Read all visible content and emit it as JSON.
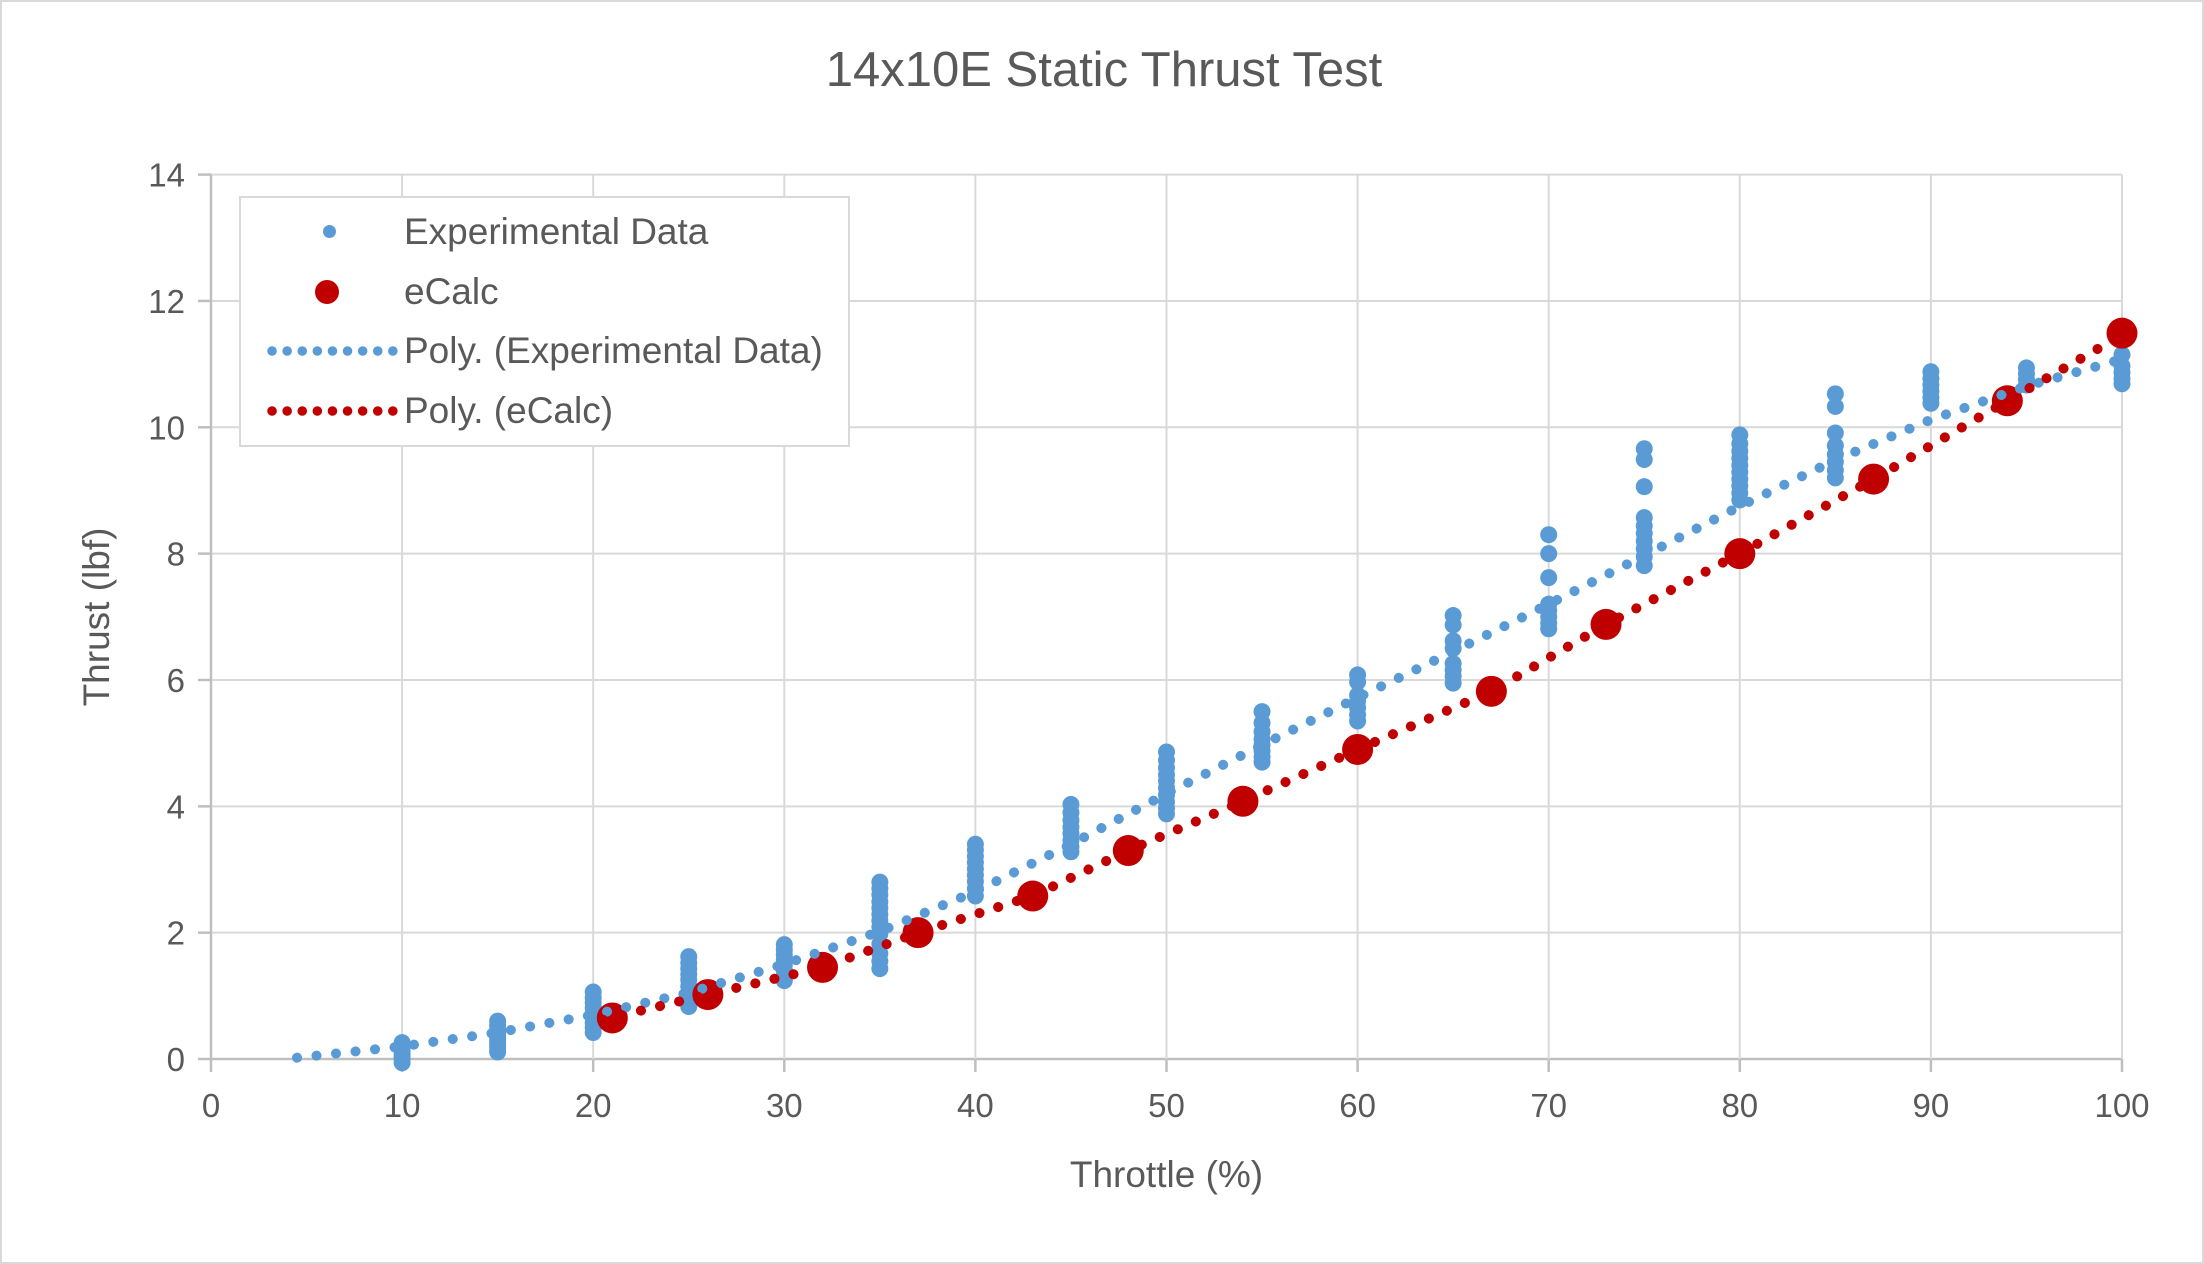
{
  "window": {
    "background": "#ffffff",
    "border_color": "#d9d9d9"
  },
  "chart_data": {
    "type": "scatter",
    "title": "14x10E Static Thrust Test",
    "xlabel": "Throttle (%)",
    "ylabel": "Thrust (lbf)",
    "xlim": [
      0,
      100
    ],
    "ylim": [
      0,
      14
    ],
    "xticks": [
      0,
      10,
      20,
      30,
      40,
      50,
      60,
      70,
      80,
      90,
      100
    ],
    "yticks": [
      0,
      2,
      4,
      6,
      8,
      10,
      12,
      14
    ],
    "grid": true,
    "legend_position": "top-left",
    "colors": {
      "experimental_blue": "#5B9BD5",
      "ecalc_red": "#C00000",
      "text_gray": "#595959",
      "gridline_gray": "#D9D9D9",
      "axis_gray": "#BFBFBF"
    },
    "series": [
      {
        "name": "Experimental Data",
        "kind": "scatter",
        "color": "#5B9BD5",
        "marker_diameter": 17,
        "points": [
          [
            10,
            0.26
          ],
          [
            10,
            0.21
          ],
          [
            10,
            0.17
          ],
          [
            10,
            0.13
          ],
          [
            10,
            0.09
          ],
          [
            10,
            0.04
          ],
          [
            10,
            0.0
          ],
          [
            10,
            -0.06
          ],
          [
            15,
            0.6
          ],
          [
            15,
            0.53
          ],
          [
            15,
            0.47
          ],
          [
            15,
            0.42
          ],
          [
            15,
            0.37
          ],
          [
            15,
            0.32
          ],
          [
            15,
            0.27
          ],
          [
            15,
            0.22
          ],
          [
            15,
            0.17
          ],
          [
            15,
            0.11
          ],
          [
            20,
            1.06
          ],
          [
            20,
            0.97
          ],
          [
            20,
            0.89
          ],
          [
            20,
            0.81
          ],
          [
            20,
            0.73
          ],
          [
            20,
            0.65
          ],
          [
            20,
            0.57
          ],
          [
            20,
            0.5
          ],
          [
            20,
            0.42
          ],
          [
            25,
            1.62
          ],
          [
            25,
            1.52
          ],
          [
            25,
            1.43
          ],
          [
            25,
            1.34
          ],
          [
            25,
            1.25
          ],
          [
            25,
            1.15
          ],
          [
            25,
            1.05
          ],
          [
            25,
            0.94
          ],
          [
            25,
            0.83
          ],
          [
            30,
            1.81
          ],
          [
            30,
            1.73
          ],
          [
            30,
            1.65
          ],
          [
            30,
            1.57
          ],
          [
            30,
            1.49
          ],
          [
            30,
            1.41
          ],
          [
            30,
            1.32
          ],
          [
            30,
            1.24
          ],
          [
            35,
            2.8
          ],
          [
            35,
            2.7
          ],
          [
            35,
            2.6
          ],
          [
            35,
            2.49
          ],
          [
            35,
            2.39
          ],
          [
            35,
            2.29
          ],
          [
            35,
            2.19
          ],
          [
            35,
            2.09
          ],
          [
            35,
            1.98
          ],
          [
            35,
            1.82
          ],
          [
            35,
            1.67
          ],
          [
            35,
            1.55
          ],
          [
            35,
            1.43
          ],
          [
            40,
            3.4
          ],
          [
            40,
            3.31
          ],
          [
            40,
            3.21
          ],
          [
            40,
            3.11
          ],
          [
            40,
            3.01
          ],
          [
            40,
            2.91
          ],
          [
            40,
            2.81
          ],
          [
            40,
            2.7
          ],
          [
            40,
            2.58
          ],
          [
            45,
            4.03
          ],
          [
            45,
            3.9
          ],
          [
            45,
            3.78
          ],
          [
            45,
            3.67
          ],
          [
            45,
            3.57
          ],
          [
            45,
            3.46
          ],
          [
            45,
            3.36
          ],
          [
            45,
            3.28
          ],
          [
            50,
            4.86
          ],
          [
            50,
            4.73
          ],
          [
            50,
            4.61
          ],
          [
            50,
            4.5
          ],
          [
            50,
            4.4
          ],
          [
            50,
            4.29
          ],
          [
            50,
            4.18
          ],
          [
            50,
            4.07
          ],
          [
            50,
            3.97
          ],
          [
            50,
            3.88
          ],
          [
            55,
            5.5
          ],
          [
            55,
            5.32
          ],
          [
            55,
            5.18
          ],
          [
            55,
            5.06
          ],
          [
            55,
            4.97
          ],
          [
            55,
            4.88
          ],
          [
            55,
            4.78
          ],
          [
            55,
            4.7
          ],
          [
            60,
            6.08
          ],
          [
            60,
            5.97
          ],
          [
            60,
            5.76
          ],
          [
            60,
            5.67
          ],
          [
            60,
            5.56
          ],
          [
            60,
            5.45
          ],
          [
            60,
            5.35
          ],
          [
            65,
            7.02
          ],
          [
            65,
            6.87
          ],
          [
            65,
            6.62
          ],
          [
            65,
            6.5
          ],
          [
            65,
            6.26
          ],
          [
            65,
            6.16
          ],
          [
            65,
            6.06
          ],
          [
            65,
            5.95
          ],
          [
            70,
            8.3
          ],
          [
            70,
            8.0
          ],
          [
            70,
            7.62
          ],
          [
            70,
            7.2
          ],
          [
            70,
            7.1
          ],
          [
            70,
            7.0
          ],
          [
            70,
            6.9
          ],
          [
            70,
            6.81
          ],
          [
            75,
            9.66
          ],
          [
            75,
            9.49
          ],
          [
            75,
            9.06
          ],
          [
            75,
            8.57
          ],
          [
            75,
            8.44
          ],
          [
            75,
            8.32
          ],
          [
            75,
            8.2
          ],
          [
            75,
            8.08
          ],
          [
            75,
            7.95
          ],
          [
            75,
            7.81
          ],
          [
            80,
            9.88
          ],
          [
            80,
            9.74
          ],
          [
            80,
            9.62
          ],
          [
            80,
            9.51
          ],
          [
            80,
            9.4
          ],
          [
            80,
            9.29
          ],
          [
            80,
            9.18
          ],
          [
            80,
            9.07
          ],
          [
            80,
            8.96
          ],
          [
            80,
            8.85
          ],
          [
            85,
            10.53
          ],
          [
            85,
            10.33
          ],
          [
            85,
            9.91
          ],
          [
            85,
            9.71
          ],
          [
            85,
            9.57
          ],
          [
            85,
            9.45
          ],
          [
            85,
            9.32
          ],
          [
            85,
            9.2
          ],
          [
            90,
            10.88
          ],
          [
            90,
            10.77
          ],
          [
            90,
            10.67
          ],
          [
            90,
            10.57
          ],
          [
            90,
            10.47
          ],
          [
            90,
            10.38
          ],
          [
            95,
            10.94
          ],
          [
            95,
            10.85
          ],
          [
            95,
            10.76
          ],
          [
            95,
            10.67
          ],
          [
            100,
            11.15
          ],
          [
            100,
            10.97
          ],
          [
            100,
            10.87
          ],
          [
            100,
            10.77
          ],
          [
            100,
            10.69
          ]
        ]
      },
      {
        "name": "eCalc",
        "kind": "scatter",
        "color": "#C00000",
        "marker_diameter": 31,
        "points": [
          [
            21,
            0.65
          ],
          [
            26,
            1.02
          ],
          [
            32,
            1.45
          ],
          [
            37,
            2.0
          ],
          [
            43,
            2.58
          ],
          [
            48,
            3.3
          ],
          [
            54,
            4.08
          ],
          [
            60,
            4.9
          ],
          [
            67,
            5.82
          ],
          [
            73,
            6.88
          ],
          [
            80,
            8.0
          ],
          [
            87,
            9.18
          ],
          [
            94,
            10.42
          ],
          [
            100,
            11.49
          ]
        ]
      },
      {
        "name": "Poly. (Experimental Data)",
        "kind": "dotted_trendline",
        "color": "#5B9BD5",
        "points": [
          [
            4.5,
            0.02
          ],
          [
            10,
            0.2
          ],
          [
            15,
            0.42
          ],
          [
            20,
            0.7
          ],
          [
            25,
            1.05
          ],
          [
            30,
            1.5
          ],
          [
            35,
            2.02
          ],
          [
            40,
            2.65
          ],
          [
            45,
            3.4
          ],
          [
            50,
            4.2
          ],
          [
            55,
            4.97
          ],
          [
            60,
            5.72
          ],
          [
            65,
            6.45
          ],
          [
            70,
            7.2
          ],
          [
            75,
            7.97
          ],
          [
            80,
            8.75
          ],
          [
            85,
            9.48
          ],
          [
            90,
            10.12
          ],
          [
            95,
            10.65
          ],
          [
            100.5,
            11.12
          ]
        ]
      },
      {
        "name": "Poly. (eCalc)",
        "kind": "dotted_trendline",
        "color": "#C00000",
        "points": [
          [
            20.5,
            0.62
          ],
          [
            26,
            1.02
          ],
          [
            32,
            1.45
          ],
          [
            37,
            2.0
          ],
          [
            43,
            2.58
          ],
          [
            48,
            3.3
          ],
          [
            54,
            4.08
          ],
          [
            60,
            4.9
          ],
          [
            67,
            5.82
          ],
          [
            73,
            6.88
          ],
          [
            80,
            8.0
          ],
          [
            87,
            9.18
          ],
          [
            94,
            10.42
          ],
          [
            100.5,
            11.55
          ]
        ]
      }
    ]
  }
}
